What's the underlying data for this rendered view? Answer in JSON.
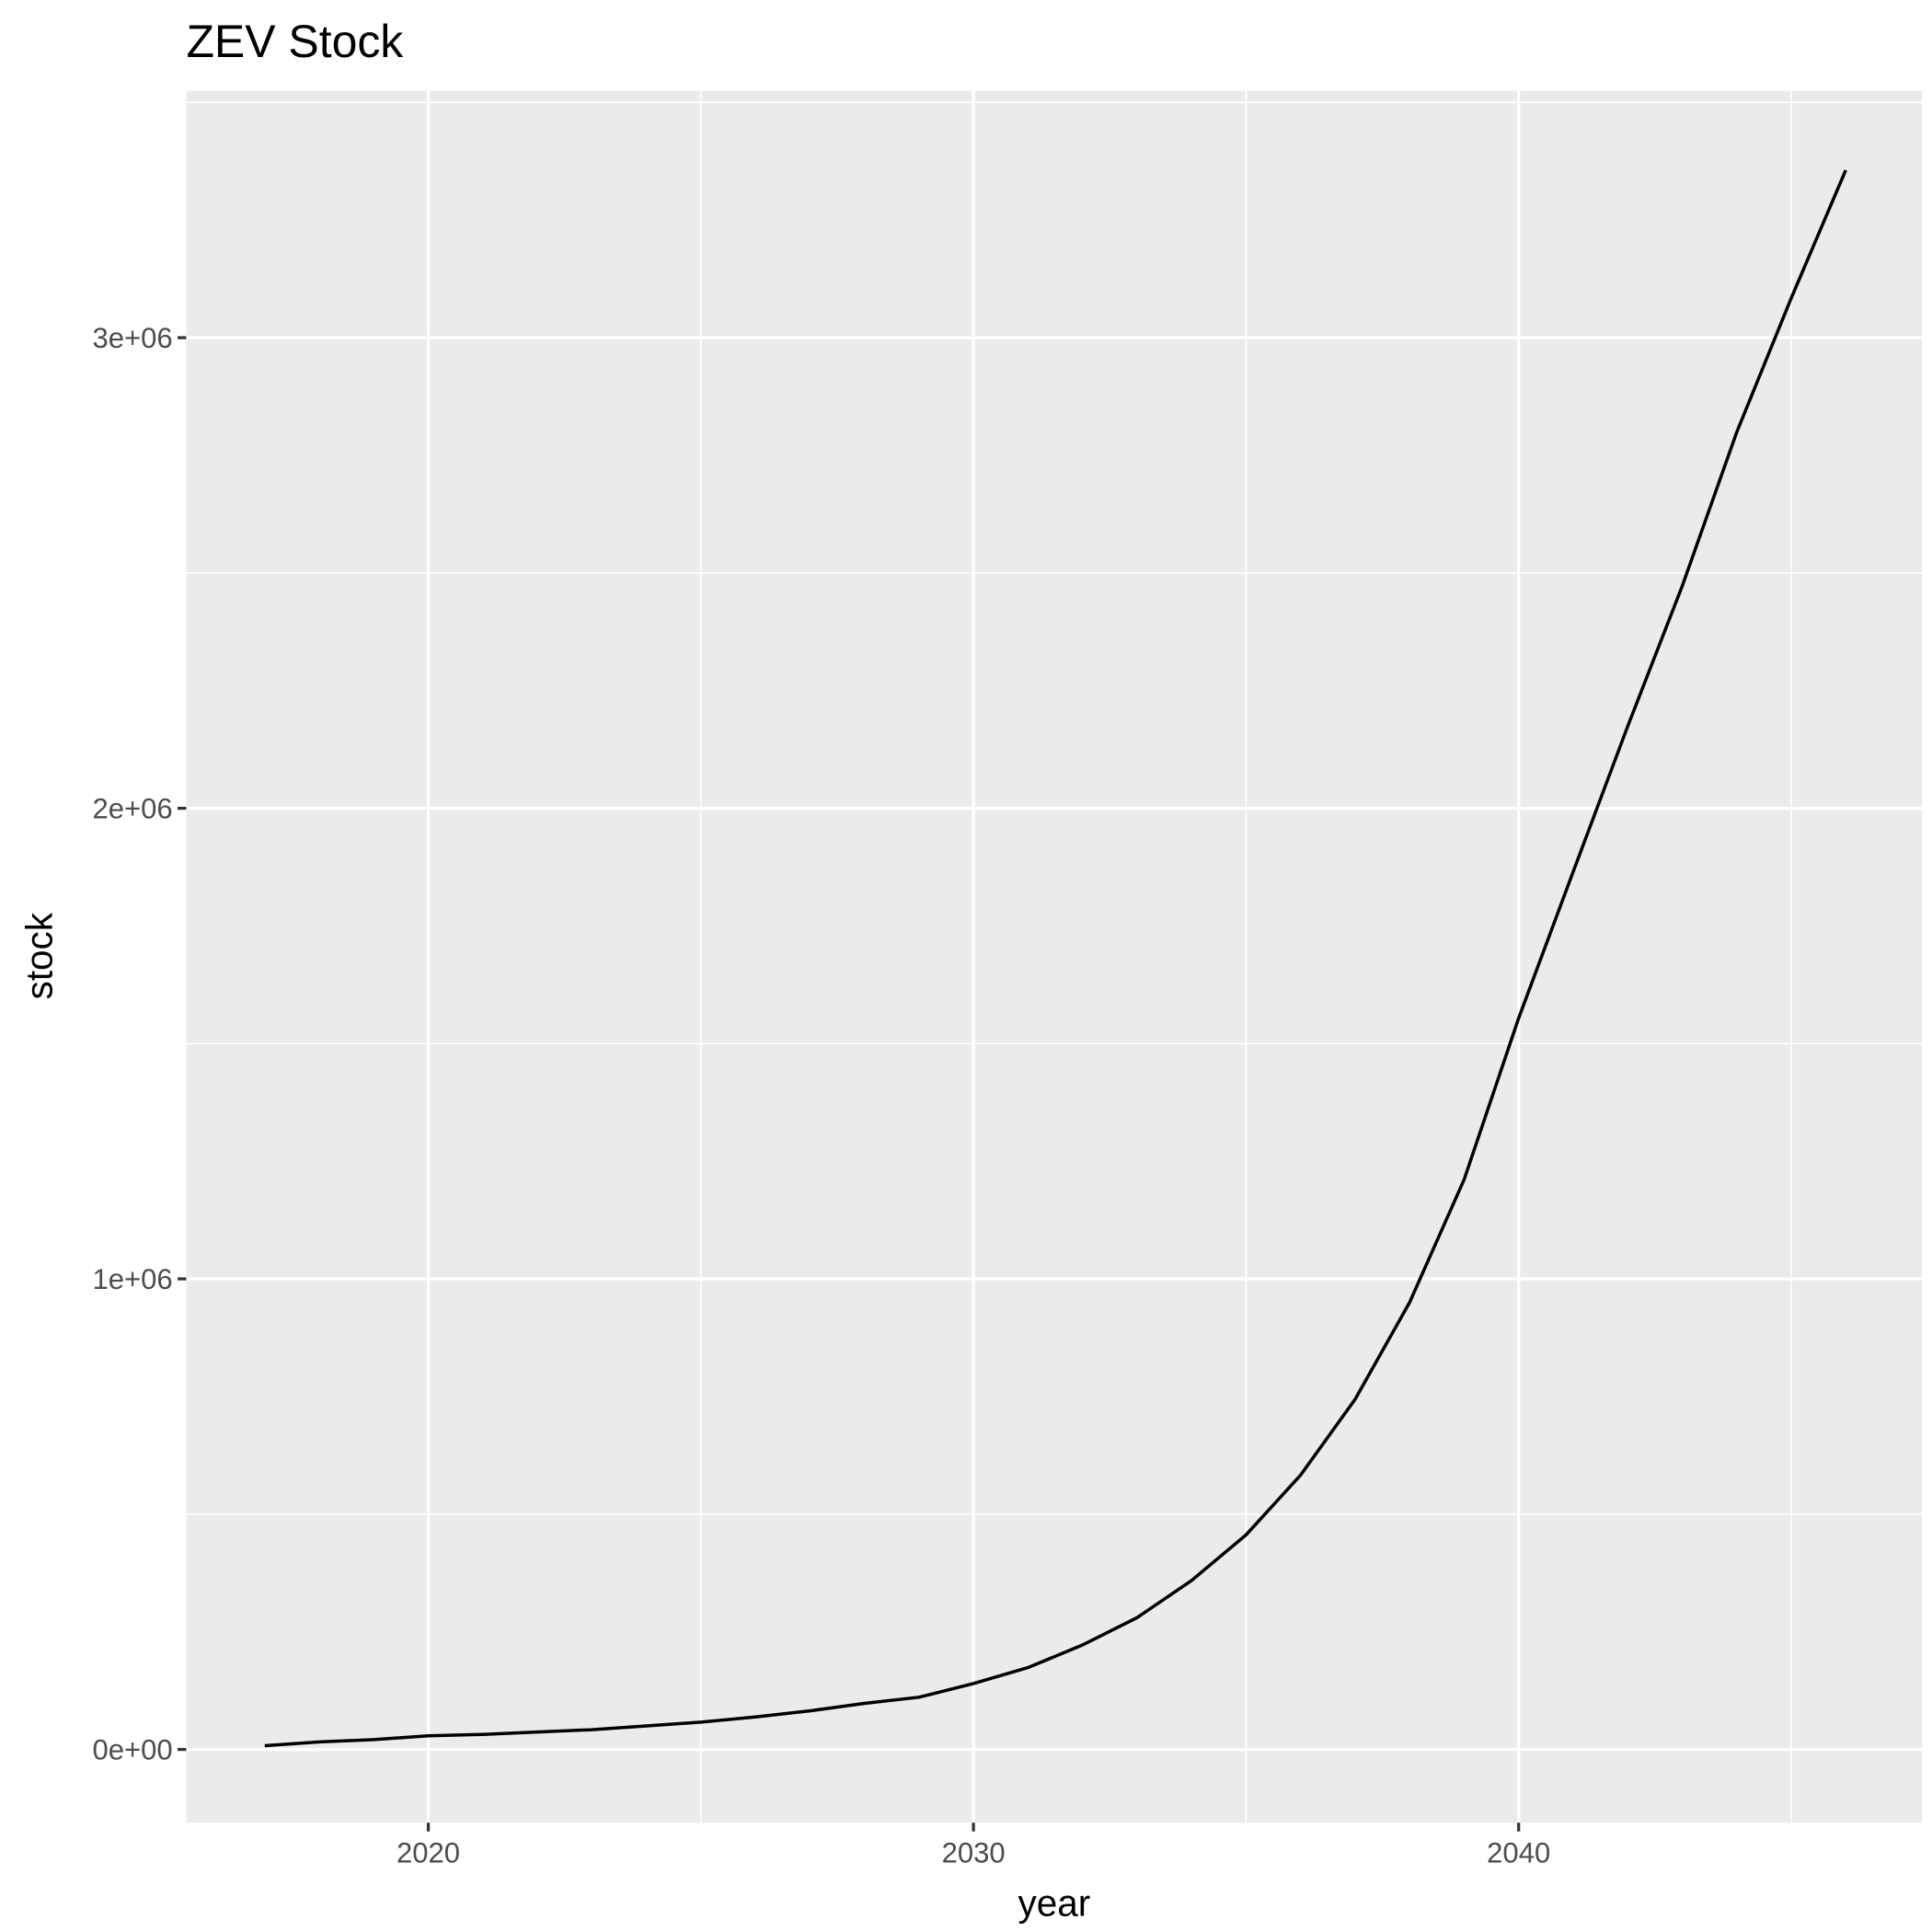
{
  "chart_data": {
    "type": "line",
    "title": "ZEV Stock",
    "x_label": "year",
    "y_label": "stock",
    "x": [
      2017,
      2018,
      2019,
      2020,
      2021,
      2022,
      2023,
      2024,
      2025,
      2026,
      2027,
      2028,
      2029,
      2030,
      2031,
      2032,
      2033,
      2034,
      2035,
      2036,
      2037,
      2038,
      2039,
      2040,
      2041,
      2042,
      2043,
      2044,
      2045,
      2046
    ],
    "series": [
      {
        "name": "stock",
        "color": "#000000",
        "values": [
          8000,
          16000,
          21000,
          29000,
          32000,
          37000,
          42000,
          50000,
          58000,
          69000,
          82000,
          98000,
          111000,
          140000,
          174000,
          222000,
          280000,
          359000,
          456000,
          583000,
          744000,
          950000,
          1211000,
          1554000,
          1865000,
          2174000,
          2472000,
          2799000,
          3084000,
          3356000
        ]
      }
    ],
    "xlim": [
      2015.56,
      2047.4
    ],
    "ylim": [
      -155700,
      3525000
    ],
    "xticks": [
      2020,
      2030,
      2040
    ],
    "yticks": [
      {
        "value": 0,
        "label": "0e+00"
      },
      {
        "value": 1000000,
        "label": "1e+06"
      },
      {
        "value": 2000000,
        "label": "2e+06"
      },
      {
        "value": 3000000,
        "label": "3e+06"
      }
    ],
    "xminor": [
      2025,
      2035,
      2045
    ],
    "yminor": [
      500000,
      1500000,
      2500000,
      3500000
    ],
    "grid": true,
    "legend": false
  }
}
